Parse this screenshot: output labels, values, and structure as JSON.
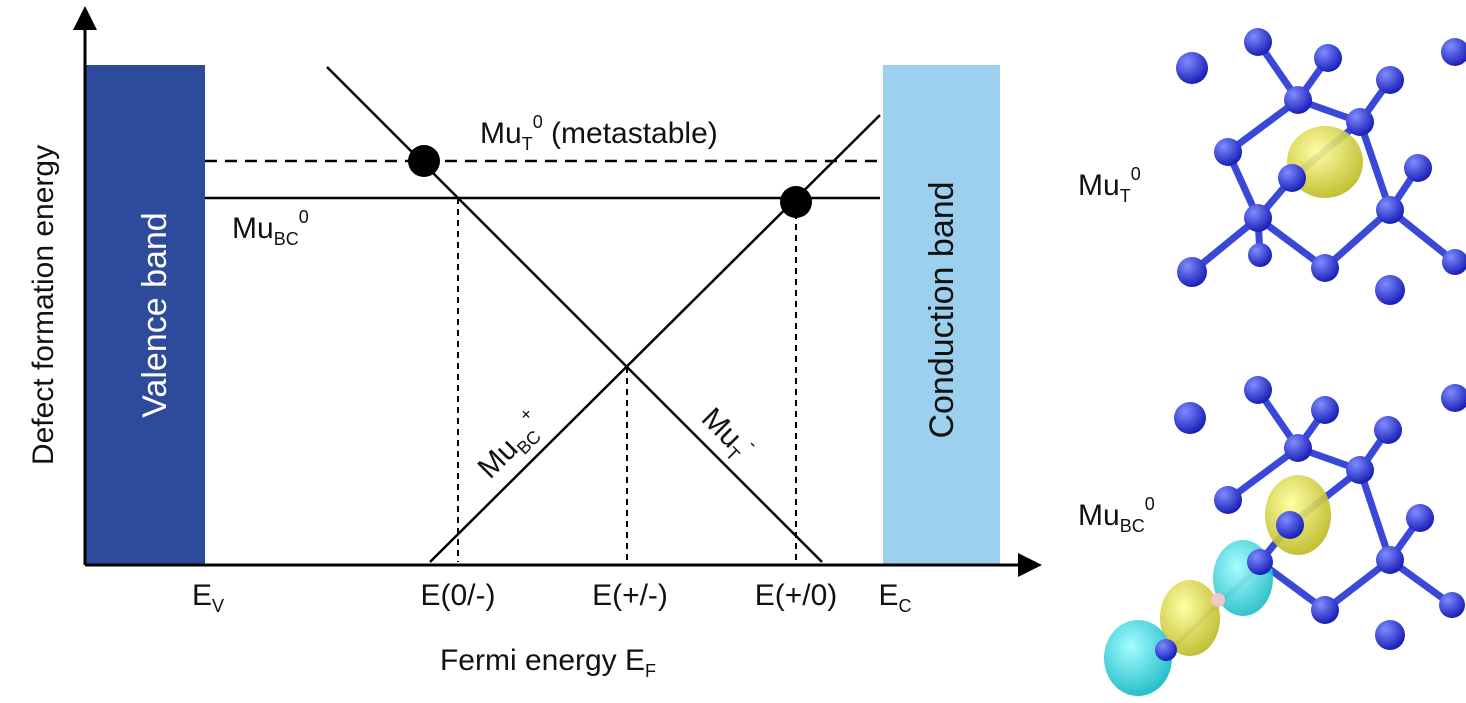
{
  "axes": {
    "y_label": "Defect formation energy",
    "x_label": {
      "text": "Fermi energy E",
      "sub": "F"
    }
  },
  "bands": {
    "valence": "Valence band",
    "conduction": "Conduction band"
  },
  "x_ticks": {
    "ev": {
      "base": "E",
      "sub": "V"
    },
    "e0m": "E(0/-)",
    "epm": "E(+/-)",
    "ep0": "E(+/0)",
    "ec": {
      "base": "E",
      "sub": "C"
    }
  },
  "lines": {
    "mut0": {
      "base": "Mu",
      "sub": "T",
      "sup": "0",
      "suffix": " (metastable)"
    },
    "mubc0": {
      "base": "Mu",
      "sub": "BC",
      "sup": "0"
    },
    "mubcp": {
      "base": "Mu",
      "sub": "BC",
      "sup": "+"
    },
    "mutm": {
      "base": "Mu",
      "sub": "T",
      "sup": "-"
    }
  },
  "structures": {
    "top": {
      "base": "Mu",
      "sub": "T",
      "sup": "0"
    },
    "bottom": {
      "base": "Mu",
      "sub": "BC",
      "sup": "0"
    }
  }
}
